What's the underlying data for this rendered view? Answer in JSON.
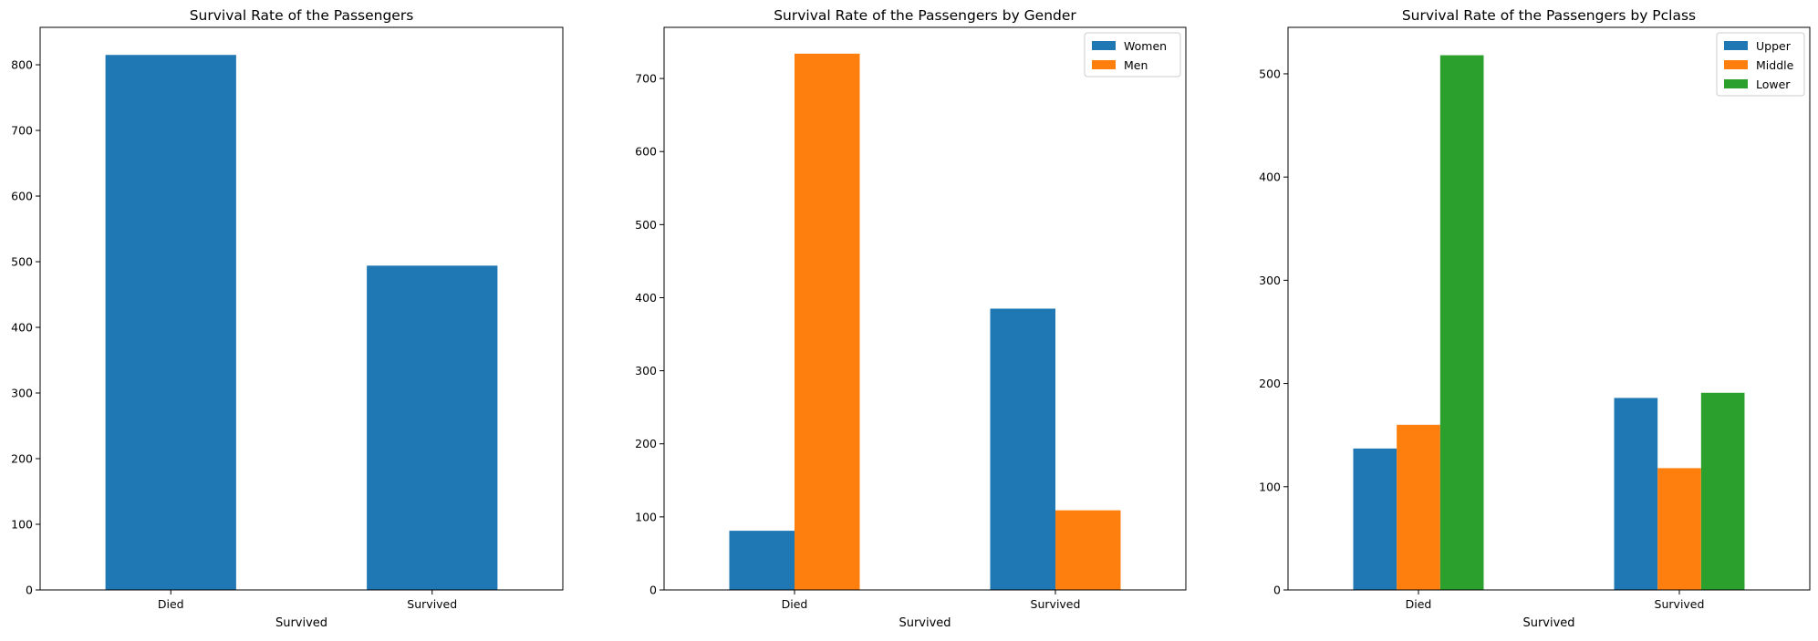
{
  "chart_data": [
    {
      "type": "bar",
      "title": "Survival Rate of the Passengers",
      "xlabel": "Survived",
      "ylabel": "",
      "categories": [
        "Died",
        "Survived"
      ],
      "ylim": [
        0,
        857
      ],
      "yticks": [
        0,
        100,
        200,
        300,
        400,
        500,
        600,
        700,
        800
      ],
      "legend": null,
      "series": [
        {
          "values": [
            815,
            494
          ],
          "color": "#1f77b4"
        }
      ]
    },
    {
      "type": "bar",
      "title": "Survival Rate of the Passengers by Gender",
      "xlabel": "Survived",
      "ylabel": "",
      "categories": [
        "Died",
        "Survived"
      ],
      "ylim": [
        0,
        770
      ],
      "yticks": [
        0,
        100,
        200,
        300,
        400,
        500,
        600,
        700
      ],
      "legend": "top-right",
      "series": [
        {
          "name": "Women",
          "values": [
            81,
            385
          ],
          "color": "#1f77b4"
        },
        {
          "name": "Men",
          "values": [
            734,
            109
          ],
          "color": "#ff7f0e"
        }
      ]
    },
    {
      "type": "bar",
      "title": "Survival Rate of the Passengers by Pclass",
      "xlabel": "Survived",
      "ylabel": "",
      "categories": [
        "Died",
        "Survived"
      ],
      "ylim": [
        0,
        545
      ],
      "yticks": [
        0,
        100,
        200,
        300,
        400,
        500
      ],
      "legend": "top-right",
      "series": [
        {
          "name": "Upper",
          "values": [
            137,
            186
          ],
          "color": "#1f77b4"
        },
        {
          "name": "Middle",
          "values": [
            160,
            118
          ],
          "color": "#ff7f0e"
        },
        {
          "name": "Lower",
          "values": [
            518,
            191
          ],
          "color": "#2ca02c"
        }
      ]
    }
  ]
}
